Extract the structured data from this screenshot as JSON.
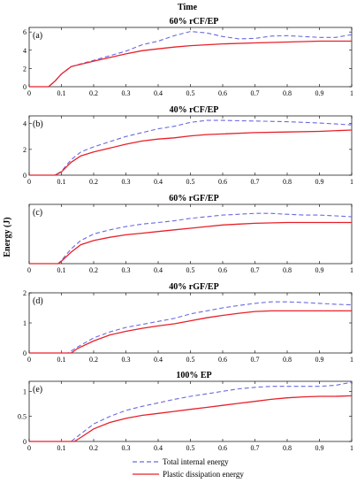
{
  "figure": {
    "top_label": "Time",
    "y_label": "Energy (J)"
  },
  "legend": {
    "items": [
      {
        "label": "Total internal energy",
        "color": "#6a6ae0",
        "dash": true
      },
      {
        "label": "Plastic dissipation energy",
        "color": "#e8202a",
        "dash": false
      }
    ]
  },
  "chart_data": [
    {
      "type": "line",
      "title": "60% rCF/EP",
      "panel_label": "(a)",
      "xlim": [
        0,
        1
      ],
      "ylim": [
        0,
        6.5
      ],
      "x_ticks": [
        "0",
        "0.1",
        "0.2",
        "0.3",
        "0.4",
        "0.5",
        "0.6",
        "0.7",
        "0.8",
        "0.9",
        "1"
      ],
      "y_ticks": [
        "0",
        "2",
        "4",
        "6"
      ],
      "series": [
        {
          "name": "Total internal energy",
          "color": "#6a6ae0",
          "x": [
            0,
            0.06,
            0.08,
            0.1,
            0.13,
            0.2,
            0.25,
            0.3,
            0.35,
            0.4,
            0.45,
            0.5,
            0.55,
            0.6,
            0.65,
            0.7,
            0.75,
            0.8,
            0.85,
            0.9,
            0.95,
            1.0
          ],
          "y": [
            0,
            0,
            0.6,
            1.4,
            2.2,
            2.9,
            3.4,
            3.9,
            4.6,
            5.0,
            5.6,
            6.05,
            5.9,
            5.5,
            5.25,
            5.3,
            5.55,
            5.6,
            5.5,
            5.4,
            5.4,
            5.7
          ]
        },
        {
          "name": "Plastic dissipation energy",
          "color": "#e8202a",
          "x": [
            0,
            0.06,
            0.08,
            0.1,
            0.13,
            0.2,
            0.25,
            0.3,
            0.35,
            0.4,
            0.45,
            0.5,
            0.55,
            0.6,
            0.7,
            0.8,
            0.85,
            0.9,
            1.0
          ],
          "y": [
            0,
            0,
            0.6,
            1.4,
            2.2,
            2.8,
            3.2,
            3.6,
            3.95,
            4.15,
            4.35,
            4.5,
            4.6,
            4.7,
            4.8,
            4.9,
            4.95,
            5.0,
            5.0
          ]
        }
      ]
    },
    {
      "type": "line",
      "title": "40% rCF/EP",
      "panel_label": "(b)",
      "xlim": [
        0,
        1
      ],
      "ylim": [
        0,
        4.6
      ],
      "x_ticks": [
        "0",
        "0.1",
        "0.2",
        "0.3",
        "0.4",
        "0.5",
        "0.6",
        "0.7",
        "0.8",
        "0.9",
        "1"
      ],
      "y_ticks": [
        "0",
        "2",
        "4"
      ],
      "series": [
        {
          "name": "Total internal energy",
          "color": "#6a6ae0",
          "x": [
            0,
            0.08,
            0.1,
            0.13,
            0.16,
            0.2,
            0.25,
            0.3,
            0.35,
            0.4,
            0.45,
            0.5,
            0.55,
            0.6,
            0.7,
            0.8,
            0.9,
            1.0
          ],
          "y": [
            0,
            0,
            0.3,
            1.2,
            1.8,
            2.2,
            2.6,
            3.0,
            3.3,
            3.6,
            3.8,
            4.1,
            4.25,
            4.25,
            4.2,
            4.15,
            4.05,
            3.9
          ]
        },
        {
          "name": "Plastic dissipation energy",
          "color": "#e8202a",
          "x": [
            0,
            0.08,
            0.1,
            0.13,
            0.16,
            0.2,
            0.25,
            0.3,
            0.35,
            0.4,
            0.45,
            0.5,
            0.55,
            0.6,
            0.7,
            0.8,
            0.9,
            1.0
          ],
          "y": [
            0,
            0,
            0.25,
            1.0,
            1.5,
            1.8,
            2.1,
            2.4,
            2.65,
            2.8,
            2.9,
            3.05,
            3.15,
            3.2,
            3.3,
            3.35,
            3.4,
            3.5
          ]
        }
      ]
    },
    {
      "type": "line",
      "title": "60% rGF/EP",
      "panel_label": "(c)",
      "xlim": [
        0,
        1
      ],
      "ylim": [
        0,
        3.6
      ],
      "x_ticks": [
        "0",
        "0.1",
        "0.2",
        "0.3",
        "0.4",
        "0.5",
        "0.6",
        "0.7",
        "0.8",
        "0.9",
        "1"
      ],
      "y_ticks": [],
      "series": [
        {
          "name": "Total internal energy",
          "color": "#6a6ae0",
          "x": [
            0,
            0.09,
            0.1,
            0.13,
            0.16,
            0.2,
            0.25,
            0.3,
            0.35,
            0.4,
            0.45,
            0.5,
            0.55,
            0.6,
            0.65,
            0.7,
            0.75,
            0.8,
            0.85,
            0.9,
            0.95,
            1.0
          ],
          "y": [
            0,
            0,
            0.2,
            0.9,
            1.4,
            1.8,
            2.05,
            2.25,
            2.4,
            2.5,
            2.6,
            2.75,
            2.85,
            2.95,
            3.0,
            3.05,
            3.05,
            3.0,
            2.95,
            2.95,
            2.9,
            2.85
          ]
        },
        {
          "name": "Plastic dissipation energy",
          "color": "#e8202a",
          "x": [
            0,
            0.09,
            0.1,
            0.13,
            0.16,
            0.2,
            0.25,
            0.3,
            0.35,
            0.4,
            0.45,
            0.5,
            0.55,
            0.6,
            0.65,
            0.7,
            0.8,
            0.9,
            1.0
          ],
          "y": [
            0,
            0,
            0.15,
            0.7,
            1.15,
            1.4,
            1.6,
            1.75,
            1.85,
            1.95,
            2.05,
            2.15,
            2.25,
            2.35,
            2.4,
            2.45,
            2.5,
            2.5,
            2.5
          ]
        }
      ]
    },
    {
      "type": "line",
      "title": "40% rGF/EP",
      "panel_label": "(d)",
      "xlim": [
        0,
        1
      ],
      "ylim": [
        0,
        2
      ],
      "x_ticks": [
        "0",
        "0.1",
        "0.2",
        "0.3",
        "0.4",
        "0.5",
        "0.6",
        "0.7",
        "0.8",
        "0.9",
        "1"
      ],
      "y_ticks": [
        "0",
        "1",
        "2"
      ],
      "series": [
        {
          "name": "Total internal energy",
          "color": "#6a6ae0",
          "x": [
            0,
            0.12,
            0.15,
            0.2,
            0.25,
            0.3,
            0.35,
            0.4,
            0.45,
            0.5,
            0.55,
            0.6,
            0.65,
            0.7,
            0.75,
            0.8,
            0.85,
            0.9,
            0.95,
            1.0
          ],
          "y": [
            0,
            0,
            0.2,
            0.5,
            0.7,
            0.85,
            0.95,
            1.05,
            1.15,
            1.3,
            1.4,
            1.5,
            1.58,
            1.65,
            1.7,
            1.7,
            1.68,
            1.65,
            1.62,
            1.6
          ]
        },
        {
          "name": "Plastic dissipation energy",
          "color": "#e8202a",
          "x": [
            0,
            0.13,
            0.15,
            0.2,
            0.25,
            0.3,
            0.35,
            0.4,
            0.45,
            0.5,
            0.55,
            0.6,
            0.65,
            0.7,
            0.75,
            0.8,
            0.9,
            1.0
          ],
          "y": [
            0,
            0,
            0.15,
            0.4,
            0.6,
            0.72,
            0.82,
            0.9,
            0.97,
            1.07,
            1.17,
            1.25,
            1.32,
            1.38,
            1.4,
            1.4,
            1.4,
            1.4
          ]
        }
      ]
    },
    {
      "type": "line",
      "title": "100% EP",
      "panel_label": "(e)",
      "xlim": [
        0,
        1
      ],
      "ylim": [
        0,
        1.2
      ],
      "x_ticks": [
        "0",
        "0.1",
        "0.2",
        "0.3",
        "0.4",
        "0.5",
        "0.6",
        "0.7",
        "0.8",
        "0.9",
        "1"
      ],
      "y_ticks": [
        "0",
        "0.5",
        "1"
      ],
      "series": [
        {
          "name": "Total internal energy",
          "color": "#6a6ae0",
          "x": [
            0,
            0.13,
            0.15,
            0.2,
            0.25,
            0.3,
            0.35,
            0.4,
            0.45,
            0.5,
            0.55,
            0.6,
            0.65,
            0.7,
            0.75,
            0.8,
            0.85,
            0.9,
            0.95,
            1.0
          ],
          "y": [
            0,
            0,
            0.1,
            0.35,
            0.5,
            0.62,
            0.7,
            0.77,
            0.84,
            0.9,
            0.95,
            1.0,
            1.05,
            1.08,
            1.1,
            1.1,
            1.1,
            1.1,
            1.12,
            1.18
          ]
        },
        {
          "name": "Plastic dissipation energy",
          "color": "#e8202a",
          "x": [
            0,
            0.14,
            0.16,
            0.2,
            0.25,
            0.3,
            0.35,
            0.4,
            0.45,
            0.5,
            0.55,
            0.6,
            0.65,
            0.7,
            0.75,
            0.8,
            0.85,
            0.9,
            0.95,
            1.0
          ],
          "y": [
            0,
            0,
            0.08,
            0.25,
            0.38,
            0.46,
            0.52,
            0.56,
            0.6,
            0.64,
            0.68,
            0.72,
            0.76,
            0.8,
            0.84,
            0.87,
            0.89,
            0.9,
            0.9,
            0.91
          ]
        }
      ]
    }
  ]
}
